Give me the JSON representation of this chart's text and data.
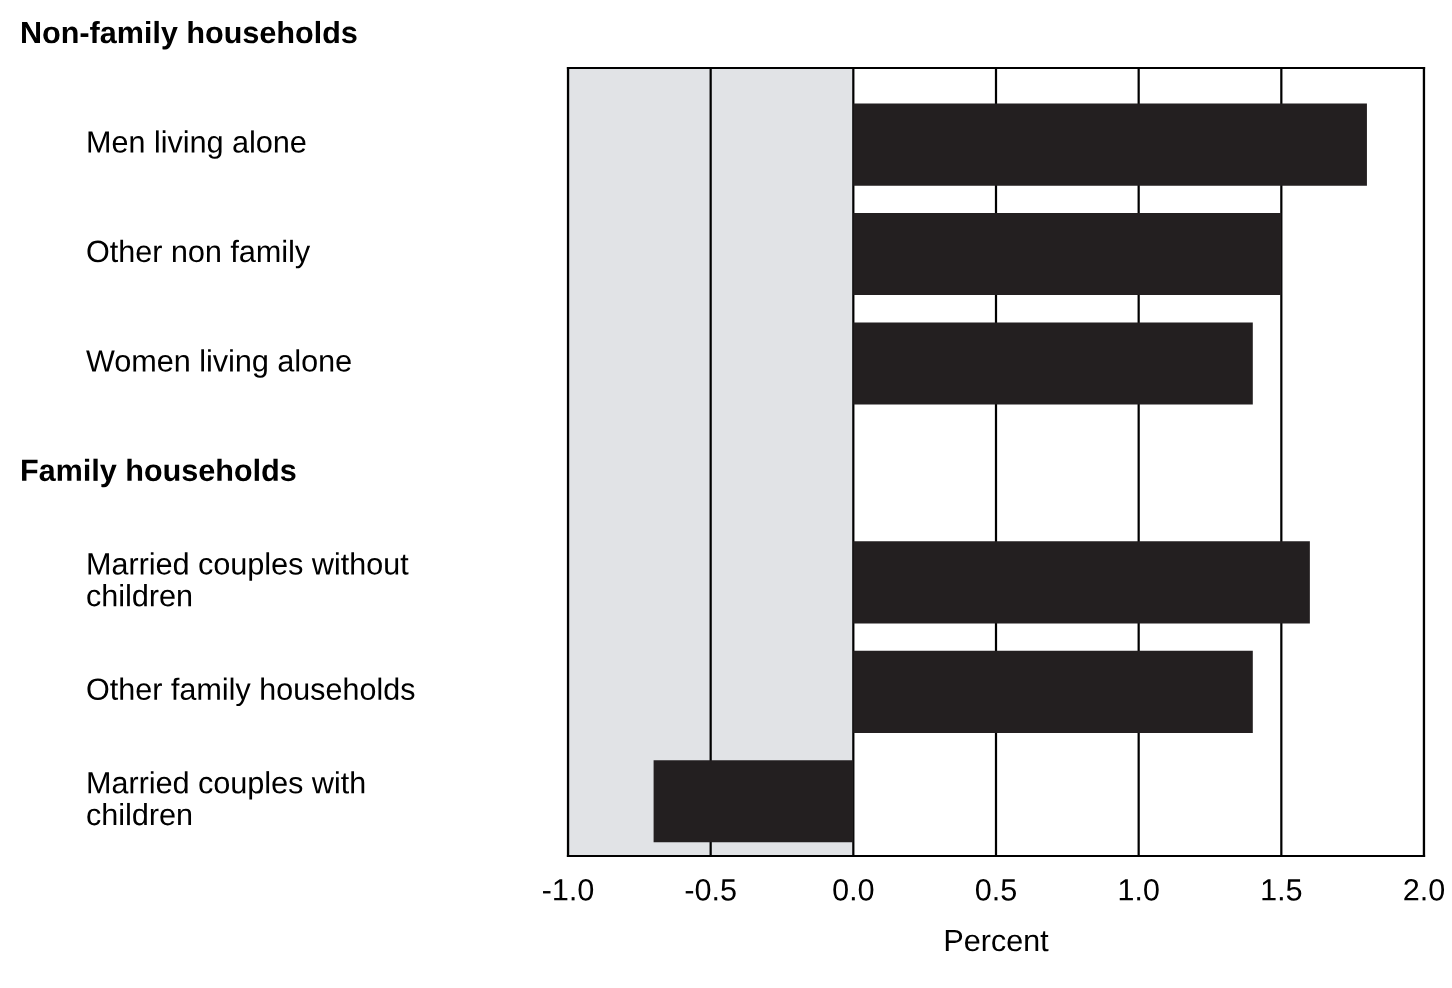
{
  "chart_data": {
    "type": "bar",
    "orientation": "horizontal",
    "xlabel": "Percent",
    "annotations": [
      "Non-family households",
      "Family households"
    ],
    "categories": [
      null,
      "Men living alone",
      "Other non family",
      "Women living alone",
      null,
      "Married couples without\nchildren",
      "Other family households",
      "Married couples with\nchildren"
    ],
    "values": [
      null,
      1.8,
      1.5,
      1.4,
      null,
      1.6,
      1.4,
      -0.7
    ],
    "color": "#231f20",
    "xlim": [
      -1.0,
      2.0
    ],
    "xticks": [
      {
        "value": -1.0,
        "label": "-1.0"
      },
      -0.5,
      {
        "value": 0.0,
        "label": "0.0"
      },
      0.5,
      {
        "value": 1.0,
        "label": "1.0"
      },
      1.5,
      {
        "value": 2.0,
        "label": "2.0"
      }
    ],
    "grid": "x",
    "bands": [
      {
        "axis": "x",
        "from": -1.0,
        "to": 0.0,
        "color": "#e1e3e6"
      }
    ]
  }
}
